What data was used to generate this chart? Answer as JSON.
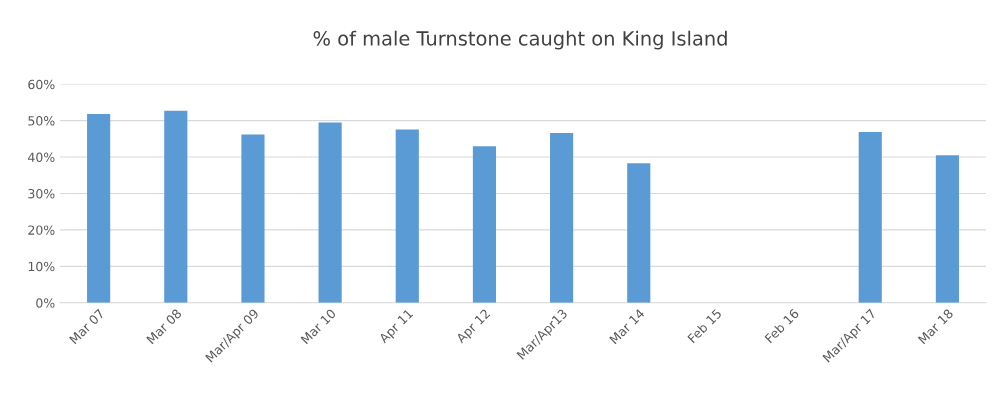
{
  "chart_data": {
    "type": "bar",
    "title": "% of male Turnstone caught on King Island",
    "categories": [
      "Mar 07",
      "Mar 08",
      "Mar/Apr 09",
      "Mar 10",
      "Apr 11",
      "Apr 12",
      "Mar/Apr13",
      "Mar 14",
      "Feb 15",
      "Feb 16",
      "Mar/Apr 17",
      "Mar 18"
    ],
    "values": [
      51.8,
      52.7,
      46.2,
      49.5,
      47.6,
      43.0,
      46.6,
      38.3,
      null,
      null,
      46.9,
      40.5
    ],
    "color": "#5b9bd5",
    "ylim": [
      0,
      60
    ],
    "yticks": [
      {
        "value": 0,
        "label": "0%"
      },
      {
        "value": 10,
        "label": "10%"
      },
      {
        "value": 20,
        "label": "20%"
      },
      {
        "value": 30,
        "label": "30%"
      },
      {
        "value": 40,
        "label": "40%"
      },
      {
        "value": 50,
        "label": "50%"
      },
      {
        "value": 60,
        "label": "60%"
      }
    ],
    "grid": "y",
    "legend": false
  }
}
